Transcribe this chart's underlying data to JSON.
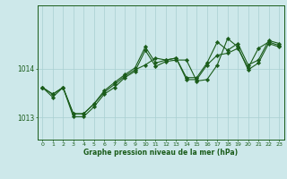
{
  "title": "Graphe pression niveau de la mer (hPa)",
  "bg_color": "#cde8ea",
  "grid_color": "#a8cfd1",
  "line_color": "#1a5c1a",
  "marker_color": "#1a5c1a",
  "xlim": [
    -0.5,
    23.5
  ],
  "ylim": [
    1012.55,
    1015.3
  ],
  "yticks": [
    1013,
    1014
  ],
  "xticks": [
    0,
    1,
    2,
    3,
    4,
    5,
    6,
    7,
    8,
    9,
    10,
    11,
    12,
    13,
    14,
    15,
    16,
    17,
    18,
    19,
    20,
    21,
    22,
    23
  ],
  "lines": [
    [
      1013.62,
      1013.48,
      1013.62,
      1013.08,
      1013.08,
      1013.28,
      1013.55,
      1013.72,
      1013.88,
      1014.02,
      1014.45,
      1014.12,
      1014.18,
      1014.22,
      1013.82,
      1013.82,
      1014.12,
      1014.55,
      1014.38,
      1014.52,
      1014.08,
      1014.18,
      1014.58,
      1014.52
    ],
    [
      1013.62,
      1013.48,
      1013.62,
      1013.08,
      1013.08,
      1013.28,
      1013.52,
      1013.68,
      1013.85,
      1013.98,
      1014.08,
      1014.22,
      1014.18,
      1014.22,
      1013.78,
      1013.78,
      1014.08,
      1014.28,
      1014.32,
      1014.42,
      1014.02,
      1014.42,
      1014.55,
      1014.48
    ],
    [
      1013.62,
      1013.42,
      1013.62,
      1013.02,
      1013.02,
      1013.22,
      1013.48,
      1013.62,
      1013.82,
      1013.95,
      1014.38,
      1014.05,
      1014.15,
      1014.18,
      1014.18,
      1013.75,
      1013.78,
      1014.08,
      1014.62,
      1014.45,
      1013.98,
      1014.12,
      1014.52,
      1014.45
    ]
  ]
}
